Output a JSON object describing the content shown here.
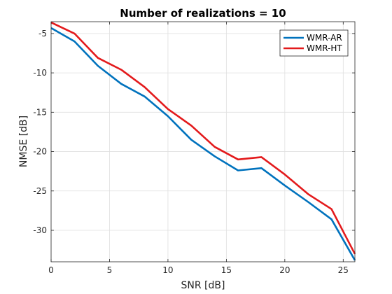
{
  "chart_data": {
    "type": "line",
    "title": "Number of realizations = 10",
    "xlabel": "SNR [dB]",
    "ylabel": "NMSE [dB]",
    "xlim": [
      0,
      26
    ],
    "ylim": [
      -34,
      -3.5
    ],
    "xticks": [
      0,
      5,
      10,
      15,
      20,
      25
    ],
    "yticks": [
      -30,
      -25,
      -20,
      -15,
      -10,
      -5
    ],
    "grid": true,
    "legend_position": "top-right",
    "x": [
      0,
      2,
      4,
      6,
      8,
      10,
      12,
      14,
      16,
      18,
      20,
      22,
      24,
      26
    ],
    "series": [
      {
        "name": "WMR-AR",
        "color": "#0072BD",
        "values": [
          -4.3,
          -6.0,
          -9.1,
          -11.4,
          -13.0,
          -15.5,
          -18.5,
          -20.6,
          -22.4,
          -22.1,
          -24.3,
          -26.4,
          -28.6,
          -33.8
        ]
      },
      {
        "name": "WMR-HT",
        "color": "#E31A1C",
        "values": [
          -3.6,
          -5.0,
          -8.1,
          -9.6,
          -11.8,
          -14.6,
          -16.7,
          -19.4,
          -21.0,
          -20.7,
          -22.9,
          -25.4,
          -27.3,
          -33.0
        ]
      }
    ]
  }
}
